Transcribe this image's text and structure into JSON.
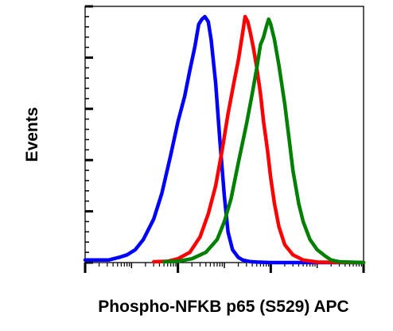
{
  "chart_data": {
    "type": "line",
    "title": "",
    "xlabel": "Phospho-NFKB p65 (S529) APC",
    "ylabel": "Events",
    "x_scale": "log",
    "xlim": [
      1,
      1000000
    ],
    "ylim": [
      0,
      100
    ],
    "grid": false,
    "legend": "none",
    "series": [
      {
        "color": "#0000ff",
        "x": [
          1,
          1.6,
          3.2,
          5.3,
          8,
          12,
          18,
          30,
          45,
          70,
          100,
          140,
          180,
          230,
          280,
          330,
          380,
          450,
          520,
          650,
          800,
          1000,
          1200,
          1500,
          2000,
          2500,
          3500,
          5000,
          10000,
          1000000
        ],
        "y": [
          1,
          1,
          1,
          2,
          3,
          5,
          9,
          17,
          27,
          42,
          55,
          65,
          75,
          84,
          93,
          95,
          96,
          94,
          87,
          70,
          48,
          26,
          12,
          5,
          2,
          1,
          0.4,
          0.2,
          0,
          0
        ]
      },
      {
        "color": "#ff0000",
        "x": [
          30,
          60,
          100,
          180,
          300,
          450,
          650,
          900,
          1200,
          1600,
          2000,
          2400,
          2800,
          3200,
          3600,
          4200,
          5000,
          6000,
          7000,
          8500,
          10000,
          12000,
          15000,
          20000,
          30000,
          50000,
          100000,
          1000000
        ],
        "y": [
          0.3,
          0.5,
          1.5,
          4,
          10,
          19,
          30,
          44,
          58,
          70,
          79,
          88,
          96,
          94,
          90,
          84,
          76,
          66,
          55,
          44,
          33,
          23,
          14,
          7,
          3,
          1,
          0.2,
          0
        ]
      },
      {
        "color": "#008000",
        "x": [
          50,
          100,
          200,
          400,
          700,
          1000,
          1400,
          2000,
          3000,
          4000,
          5000,
          6000,
          7000,
          8000,
          9000,
          10000,
          12000,
          15000,
          20000,
          25000,
          30000,
          40000,
          50000,
          70000,
          100000,
          150000,
          200000,
          300000,
          1000000
        ],
        "y": [
          0.3,
          0.5,
          1.5,
          4,
          9,
          16,
          25,
          39,
          54,
          66,
          76,
          85,
          88,
          92,
          95,
          93,
          87,
          77,
          62,
          48,
          36,
          23,
          16,
          9,
          5,
          2.5,
          1,
          0.3,
          0
        ]
      }
    ]
  }
}
